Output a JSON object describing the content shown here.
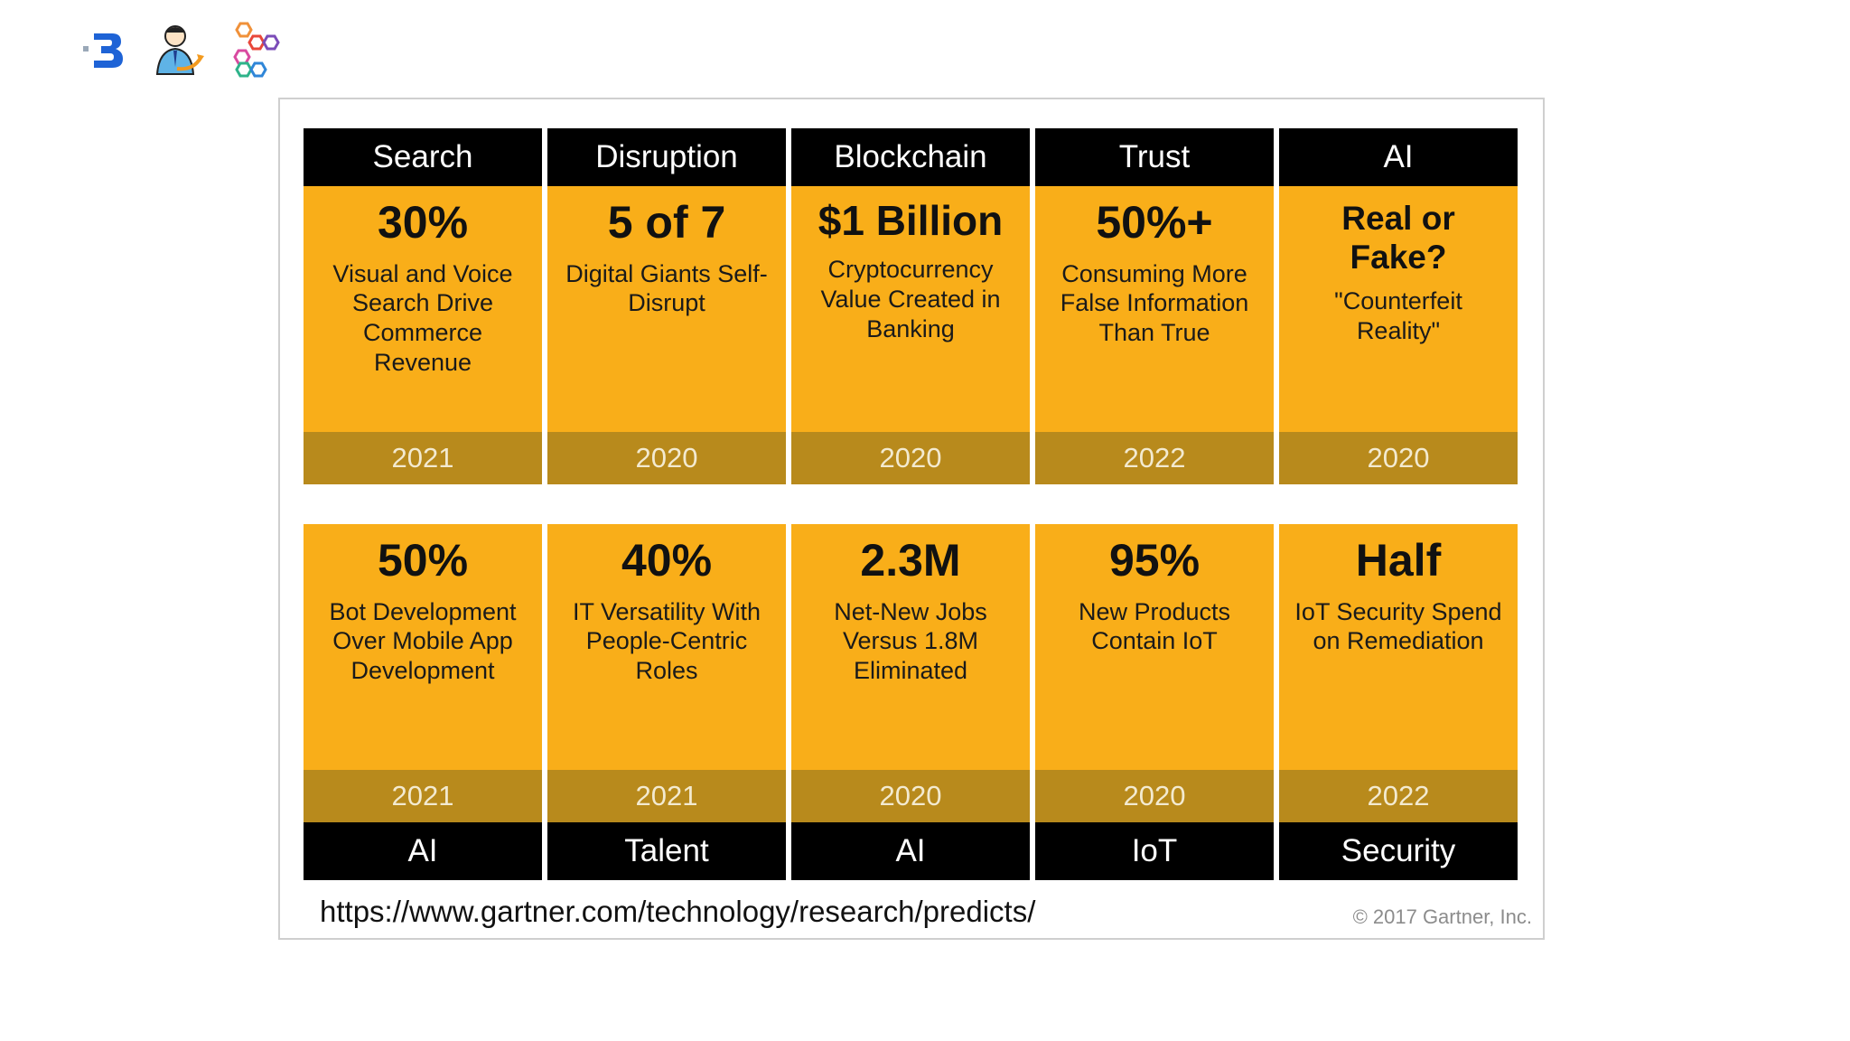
{
  "colors": {
    "card_body": "#f9ae19",
    "year_band": "#b88a1c",
    "label_band": "#000000"
  },
  "logos": [
    "logo-b-icon",
    "person-growth-icon",
    "hexagon-cluster-icon"
  ],
  "top_row": [
    {
      "category": "Search",
      "stat": "30%",
      "description": "Visual and Voice Search Drive Commerce Revenue",
      "year": "2021"
    },
    {
      "category": "Disruption",
      "stat": "5 of 7",
      "description": "Digital Giants Self-Disrupt",
      "year": "2020"
    },
    {
      "category": "Blockchain",
      "stat": "$1 Billion",
      "description": "Cryptocurrency Value Created in Banking",
      "year": "2020"
    },
    {
      "category": "Trust",
      "stat": "50%+",
      "description": "Consuming More False Information Than True",
      "year": "2022"
    },
    {
      "category": "AI",
      "stat": "Real or Fake?",
      "description": "\"Counterfeit Reality\"",
      "year": "2020"
    }
  ],
  "bottom_row": [
    {
      "stat": "50%",
      "description": "Bot Development Over Mobile App Development",
      "year": "2021",
      "category": "AI"
    },
    {
      "stat": "40%",
      "description": "IT Versatility With People-Centric Roles",
      "year": "2021",
      "category": "Talent"
    },
    {
      "stat": "2.3M",
      "description": "Net-New Jobs Versus 1.8M Eliminated",
      "year": "2020",
      "category": "AI"
    },
    {
      "stat": "95%",
      "description": "New Products Contain IoT",
      "year": "2020",
      "category": "IoT"
    },
    {
      "stat": "Half",
      "description": "IoT Security Spend on Remediation",
      "year": "2022",
      "category": "Security"
    }
  ],
  "source_url": "https://www.gartner.com/technology/research/predicts/",
  "copyright": "© 2017 Gartner, Inc."
}
